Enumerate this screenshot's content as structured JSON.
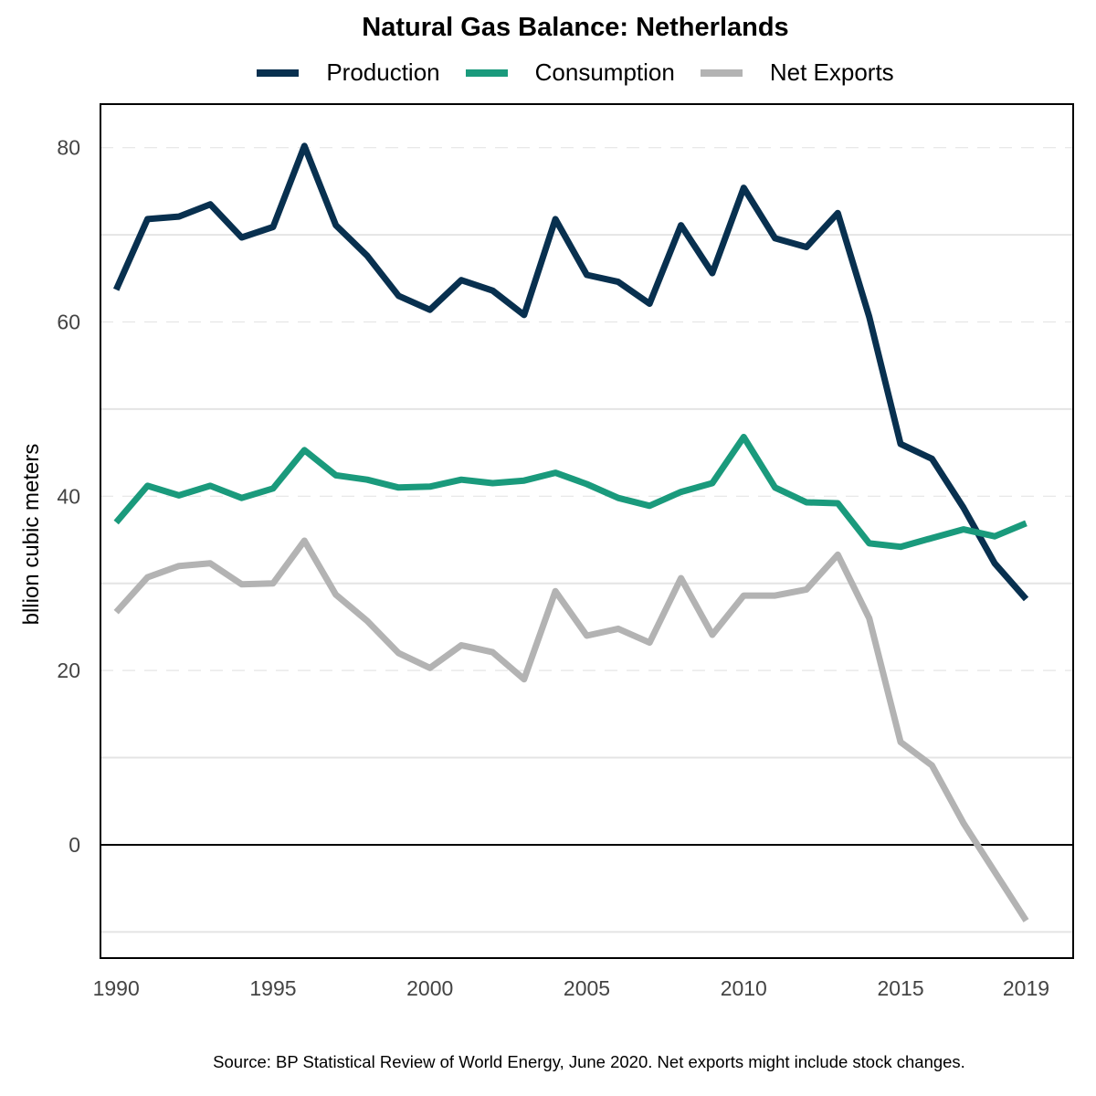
{
  "chart_data": {
    "type": "line",
    "title": "Natural Gas Balance: Netherlands",
    "xlabel": "",
    "ylabel": "bllion cubic meters",
    "xlim": [
      1989.5,
      2020.5
    ],
    "ylim": [
      -13,
      85
    ],
    "yticks": [
      0,
      20,
      40,
      60,
      80
    ],
    "xticks": [
      1990,
      1995,
      2000,
      2005,
      2010,
      2015,
      2019
    ],
    "grid": true,
    "legend": "top",
    "x": [
      1990,
      1991,
      1992,
      1993,
      1994,
      1995,
      1996,
      1997,
      1998,
      1999,
      2000,
      2001,
      2002,
      2003,
      2004,
      2005,
      2006,
      2007,
      2008,
      2009,
      2010,
      2011,
      2012,
      2013,
      2014,
      2015,
      2016,
      2017,
      2018,
      2019
    ],
    "series": [
      {
        "name": "Production",
        "color": "#08304f",
        "values": [
          63.7,
          71.8,
          72.1,
          73.5,
          69.7,
          70.9,
          80.2,
          71.1,
          67.6,
          63.0,
          61.4,
          64.8,
          63.6,
          60.8,
          71.8,
          65.4,
          64.6,
          62.1,
          71.1,
          65.6,
          75.4,
          69.6,
          68.6,
          72.5,
          60.6,
          46.0,
          44.3,
          38.7,
          32.3,
          28.2
        ]
      },
      {
        "name": "Consumption",
        "color": "#1a9a7c",
        "values": [
          37.0,
          41.2,
          40.1,
          41.2,
          39.8,
          40.9,
          45.3,
          42.4,
          41.9,
          41.0,
          41.1,
          41.9,
          41.5,
          41.8,
          42.7,
          41.4,
          39.8,
          38.9,
          40.5,
          41.5,
          46.8,
          41.0,
          39.3,
          39.2,
          34.6,
          34.2,
          35.2,
          36.2,
          35.4,
          36.9
        ]
      },
      {
        "name": "Net Exports",
        "color": "#b3b3b3",
        "values": [
          26.7,
          30.7,
          32.0,
          32.3,
          29.9,
          30.0,
          34.9,
          28.7,
          25.7,
          22.0,
          20.3,
          22.9,
          22.1,
          19.0,
          29.1,
          24.0,
          24.8,
          23.2,
          30.6,
          24.1,
          28.6,
          28.6,
          29.3,
          33.3,
          26.0,
          11.8,
          9.1,
          2.5,
          -3.1,
          -8.7
        ]
      }
    ]
  },
  "footer": {
    "source": "Source: BP Statistical Review of World Energy, June 2020. Net exports might include stock changes."
  }
}
